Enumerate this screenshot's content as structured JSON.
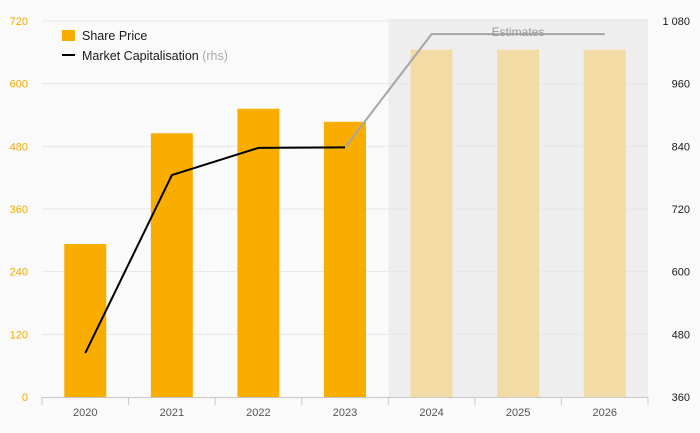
{
  "chart_data": {
    "type": "bar",
    "categories": [
      "2020",
      "2021",
      "2022",
      "2023",
      "2024",
      "2025",
      "2026"
    ],
    "series": [
      {
        "name": "Share Price",
        "type": "bar",
        "axis": "left",
        "values": [
          293,
          505,
          552,
          527,
          665,
          665,
          665
        ]
      },
      {
        "name": "Market Capitalisation",
        "note": "(rhs)",
        "type": "line",
        "axis": "right",
        "values": [
          444,
          785,
          837,
          838,
          1055,
          1055,
          1055
        ]
      }
    ],
    "estimated_from_index": 4,
    "estimates_label": "Estimates",
    "y_left": {
      "min": 0,
      "max": 720,
      "ticks": [
        0,
        120,
        240,
        360,
        480,
        600,
        720
      ]
    },
    "y_right": {
      "min": 360,
      "max": 1080,
      "ticks": [
        360,
        480,
        600,
        720,
        840,
        960,
        1080
      ],
      "tick_labels": [
        "360",
        "480",
        "600",
        "720",
        "840",
        "960",
        "1 080"
      ]
    },
    "legend_position": "top-left",
    "grid": true,
    "colors": {
      "bar": "#f9ad00",
      "bar_estimate": "#f3dba5",
      "line": "#000000",
      "line_estimate": "#a6a6a6",
      "estimate_band": "#eeeeee",
      "left_axis_text": "#f2a900"
    }
  }
}
